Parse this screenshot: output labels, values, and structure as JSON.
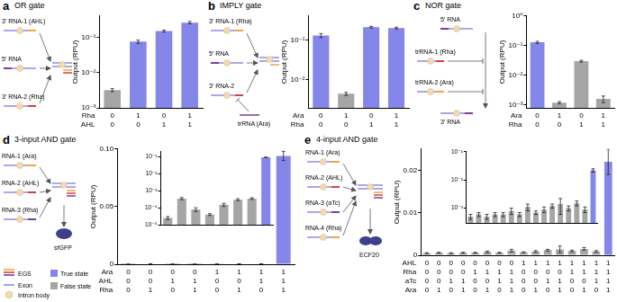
{
  "chart_data": [
    {
      "type": "bar",
      "panel_label": "a",
      "title": "OR gate",
      "y_label": "Output (RPU)",
      "log": "y",
      "ylim": [
        0.001,
        0.4
      ],
      "yticks": [
        {
          "value": 0.001,
          "label": "10⁻³"
        },
        {
          "value": 0.01,
          "label": "10⁻²"
        },
        {
          "value": 0.1,
          "label": "10⁻¹"
        }
      ],
      "inputs": [
        {
          "name": "Rha",
          "values": [
            0,
            1,
            0,
            1
          ]
        },
        {
          "name": "AHL",
          "values": [
            0,
            0,
            1,
            1
          ]
        }
      ],
      "values": [
        0.0032,
        0.075,
        0.15,
        0.26
      ],
      "errors": [
        0.0003,
        0.008,
        0.01,
        0.02
      ],
      "colors": [
        "#a5a5a5",
        "#8486ea",
        "#8486ea",
        "#8486ea"
      ]
    },
    {
      "type": "bar",
      "panel_label": "b",
      "title": "IMPLY gate",
      "y_label": "Output (RPU)",
      "log": "y",
      "ylim": [
        0.002,
        0.4
      ],
      "yticks": [
        {
          "value": 0.01,
          "label": "10⁻²"
        },
        {
          "value": 0.1,
          "label": "10⁻¹"
        }
      ],
      "inputs": [
        {
          "name": "Ara",
          "values": [
            0,
            1,
            0,
            1
          ]
        },
        {
          "name": "Rha",
          "values": [
            0,
            0,
            1,
            1
          ]
        }
      ],
      "values": [
        0.13,
        0.0045,
        0.21,
        0.2
      ],
      "errors": [
        0.015,
        0.0004,
        0.01,
        0.01
      ],
      "colors": [
        "#8486ea",
        "#a5a5a5",
        "#8486ea",
        "#8486ea"
      ]
    },
    {
      "type": "bar",
      "panel_label": "c",
      "title": "NOR gate",
      "y_label": "Output (RPU)",
      "log": "y",
      "ylim": [
        0.0008,
        1
      ],
      "yticks": [
        {
          "value": 0.001,
          "label": "10⁻³"
        },
        {
          "value": 0.01,
          "label": "10⁻²"
        },
        {
          "value": 0.1,
          "label": "10⁻¹"
        },
        {
          "value": 1,
          "label": "10⁰"
        }
      ],
      "inputs": [
        {
          "name": "Ara",
          "values": [
            0,
            1,
            0,
            1
          ]
        },
        {
          "name": "Rha",
          "values": [
            0,
            0,
            1,
            1
          ]
        }
      ],
      "values": [
        0.13,
        0.0012,
        0.03,
        0.0016
      ],
      "errors": [
        0.01,
        0.0001,
        0.002,
        0.0004
      ],
      "colors": [
        "#8486ea",
        "#a5a5a5",
        "#a5a5a5",
        "#a5a5a5"
      ]
    },
    {
      "type": "bar",
      "panel_label": "d",
      "title": "3-input AND gate",
      "y_label": "Output (RPU)",
      "ylim": [
        0,
        0.1
      ],
      "yticks": [
        0,
        0.05,
        {
          "value": 0.1,
          "label": "0.10"
        }
      ],
      "inputs": [
        {
          "name": "Ara",
          "values": [
            0,
            0,
            0,
            0,
            1,
            1,
            1,
            1
          ]
        },
        {
          "name": "AHL",
          "values": [
            0,
            0,
            1,
            1,
            0,
            0,
            1,
            1
          ]
        },
        {
          "name": "Rha",
          "values": [
            0,
            1,
            0,
            1,
            0,
            1,
            0,
            1
          ]
        }
      ],
      "values": [
        2.5e-05,
        0.00035,
        8e-05,
        4e-05,
        0.00015,
        0.0003,
        0.00035,
        0.094
      ],
      "errors": [
        5e-06,
        5e-05,
        2e-05,
        5e-06,
        3e-05,
        4e-05,
        4e-05,
        0.004
      ],
      "colors": [
        "#a5a5a5",
        "#a5a5a5",
        "#a5a5a5",
        "#a5a5a5",
        "#a5a5a5",
        "#a5a5a5",
        "#a5a5a5",
        "#8486ea"
      ],
      "inset": {
        "log": "y",
        "ylim": [
          1e-05,
          0.2
        ],
        "yticks": [
          {
            "value": 1e-05,
            "label": "10⁻⁵"
          },
          {
            "value": 0.0001,
            "label": "10⁻⁴"
          },
          {
            "value": 0.001,
            "label": "10⁻³"
          },
          {
            "value": 0.01,
            "label": "10⁻²"
          },
          {
            "value": 0.1,
            "label": "10⁻¹"
          }
        ]
      }
    },
    {
      "type": "bar",
      "panel_label": "e",
      "title": "4-input AND gate",
      "y_label": "Output (RPU)",
      "ylim": [
        0,
        0.025
      ],
      "yticks": [
        0,
        0.01,
        0.02
      ],
      "inputs": [
        {
          "name": "AHL",
          "values": [
            0,
            0,
            0,
            0,
            0,
            0,
            0,
            0,
            1,
            1,
            1,
            1,
            1,
            1,
            1,
            1
          ]
        },
        {
          "name": "Rha",
          "values": [
            0,
            0,
            0,
            0,
            1,
            1,
            1,
            1,
            0,
            0,
            0,
            0,
            1,
            1,
            1,
            1
          ]
        },
        {
          "name": "aTc",
          "values": [
            0,
            0,
            1,
            1,
            0,
            0,
            1,
            1,
            0,
            0,
            1,
            1,
            0,
            0,
            1,
            1
          ]
        },
        {
          "name": "Ara",
          "values": [
            0,
            1,
            0,
            1,
            0,
            1,
            0,
            1,
            0,
            1,
            0,
            1,
            0,
            1,
            0,
            1
          ]
        }
      ],
      "values": [
        0.0005,
        0.0006,
        0.0005,
        0.0006,
        0.0006,
        0.0008,
        0.0006,
        0.0011,
        0.0007,
        0.0009,
        0.0012,
        0.0014,
        0.001,
        0.0015,
        0.0009,
        0.022
      ],
      "errors": [
        0.0001,
        0.0001,
        0.0001,
        0.0001,
        0.0001,
        0.0002,
        0.0001,
        0.0003,
        0.0001,
        0.0002,
        0.0002,
        0.0008,
        0.0002,
        0.0003,
        0.0002,
        0.003
      ],
      "colors": [
        "#a5a5a5",
        "#a5a5a5",
        "#a5a5a5",
        "#a5a5a5",
        "#a5a5a5",
        "#a5a5a5",
        "#a5a5a5",
        "#a5a5a5",
        "#a5a5a5",
        "#a5a5a5",
        "#a5a5a5",
        "#a5a5a5",
        "#a5a5a5",
        "#a5a5a5",
        "#a5a5a5",
        "#8486ea"
      ],
      "inset": {
        "log": "y",
        "ylim": [
          0.0003,
          0.1
        ],
        "yticks": [
          {
            "value": 0.001,
            "label": "10⁻³"
          },
          {
            "value": 0.01,
            "label": "10⁻²"
          },
          {
            "value": 0.1,
            "label": "10⁻¹"
          }
        ]
      }
    }
  ],
  "diagrams": [
    {
      "panel": "a",
      "labels": [
        "3′ RNA-1 (AHL)",
        "5′ RNA",
        "3′ RNA-2 (Rha)"
      ]
    },
    {
      "panel": "b",
      "labels": [
        "3′ RNA-1 (Rha)",
        "5′ RNA",
        "3′ RNA-2",
        "trRNA (Ara)"
      ]
    },
    {
      "panel": "c",
      "labels": [
        "5′ RNA",
        "trRNA-1 (Rha)",
        "trRNA-2 (Ara)",
        "3′ RNA"
      ]
    },
    {
      "panel": "d",
      "labels": [
        "RNA-1 (Ara)",
        "RNA-2 (AHL)",
        "RNA-3 (Rha)",
        "sfGFP"
      ]
    },
    {
      "panel": "e",
      "labels": [
        "RNA-1 (Ara)",
        "RNA-2 (AHL)",
        "RNA-3 (aTc)",
        "RNA-4 (Rha)",
        "ECF20"
      ]
    }
  ],
  "key": [
    {
      "label": "EGS",
      "colors": [
        "#f4a340",
        "#d8413a",
        "#7b3f98"
      ]
    },
    {
      "label": "Exon",
      "color": "#8a8ee8"
    },
    {
      "label": "Intron body",
      "color": "#f5d9b0"
    },
    {
      "label": "True state",
      "color": "#8486ea"
    },
    {
      "label": "False state",
      "color": "#a5a5a5"
    }
  ]
}
